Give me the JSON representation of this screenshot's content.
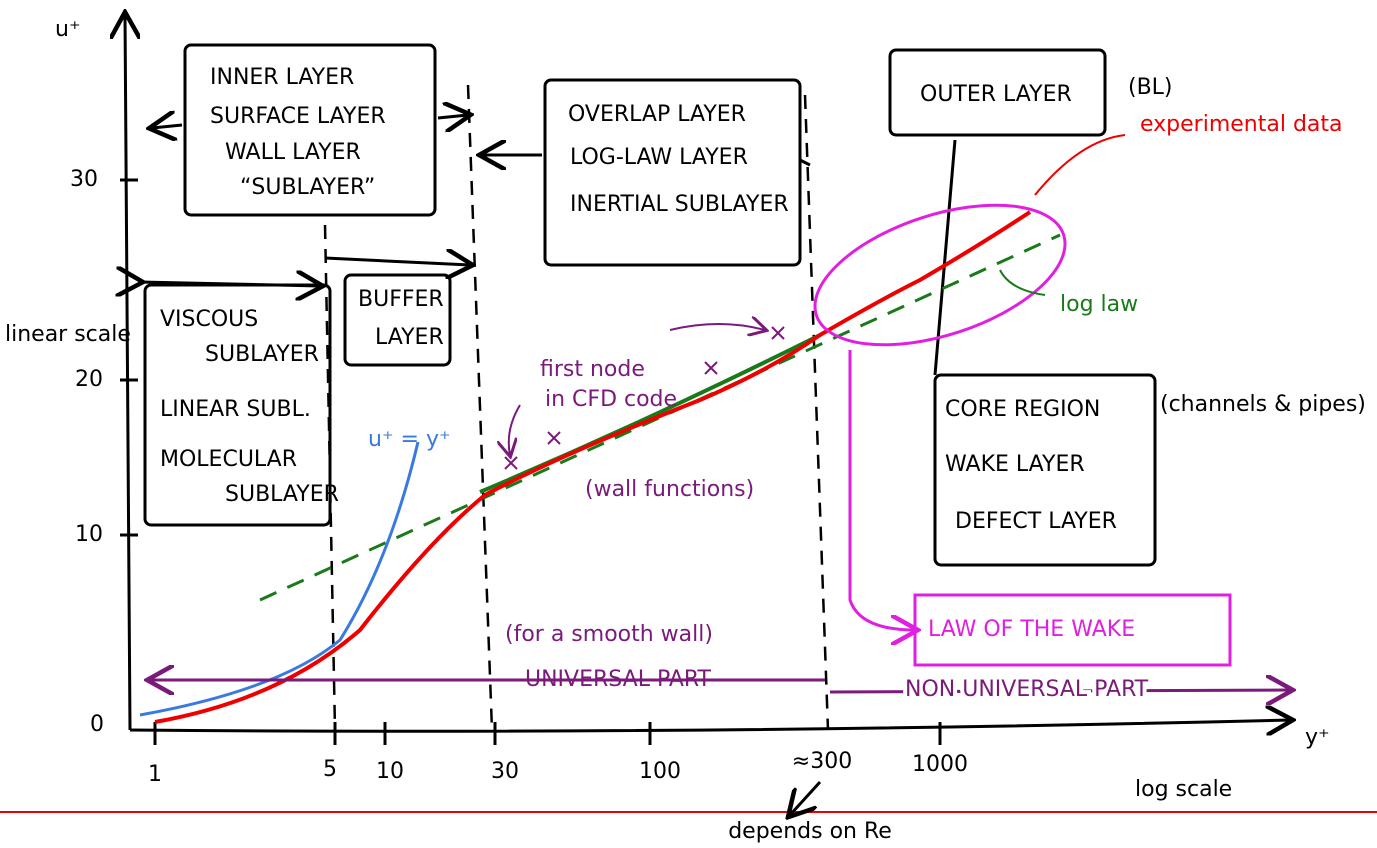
{
  "axes": {
    "y_label": "u⁺",
    "x_label": "y⁺",
    "y_scale": "linear scale",
    "x_scale": "log scale",
    "y_ticks": [
      "0",
      "10",
      "20",
      "30"
    ],
    "x_ticks": [
      "1",
      "5",
      "10",
      "30",
      "100",
      "≈300",
      "1000"
    ],
    "x_note": "depends on Re"
  },
  "inner_layer": [
    "INNER LAYER",
    "SURFACE LAYER",
    "WALL LAYER",
    "“SUBLAYER”"
  ],
  "overlap_layer": [
    "OVERLAP LAYER",
    "LOG-LAW LAYER",
    "INERTIAL SUBLAYER"
  ],
  "outer_layer": {
    "label": "OUTER LAYER",
    "note": "(BL)"
  },
  "viscous_sublayer": [
    "VISCOUS",
    "SUBLAYER",
    "LINEAR SUBL.",
    "MOLECULAR",
    "SUBLAYER"
  ],
  "buffer_layer": [
    "BUFFER",
    "LAYER"
  ],
  "core_region": {
    "lines": [
      "CORE REGION",
      "WAKE LAYER",
      "DEFECT LAYER"
    ],
    "note": "(channels & pipes)"
  },
  "law_of_wake": "LAW OF THE WAKE",
  "annotations": {
    "experimental": "experimental data",
    "log_law": "log law",
    "linear_law": "u⁺ = y⁺",
    "first_node": [
      "first node",
      "in CFD code"
    ],
    "wall_functions": "(wall functions)",
    "smooth_wall": "(for a smooth wall)",
    "universal": "UNIVERSAL PART",
    "non_universal": "NON UNIVERSAL PART"
  }
}
